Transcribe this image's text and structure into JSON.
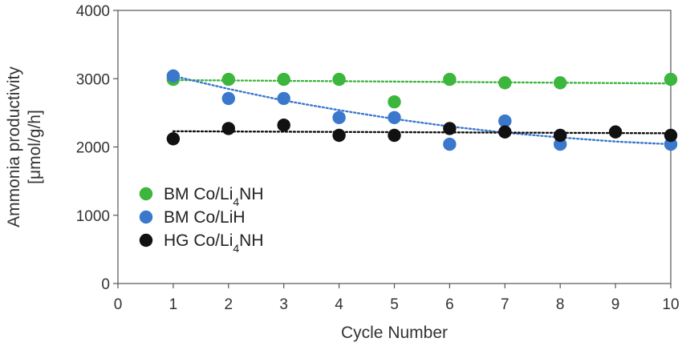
{
  "chart_data": {
    "type": "scatter",
    "title": "",
    "xlabel": "Cycle Number",
    "ylabel_line1": "Ammonia productivity",
    "ylabel_line2": "[μmol/g/h]",
    "xlim": [
      0,
      10
    ],
    "ylim": [
      0,
      4000
    ],
    "xticks": [
      0,
      1,
      2,
      3,
      4,
      5,
      6,
      7,
      8,
      9,
      10
    ],
    "yticks": [
      0,
      1000,
      2000,
      3000,
      4000
    ],
    "grid": false,
    "legend_position": "left",
    "series": [
      {
        "name_main": "BM Co/Li",
        "name_sub": "4",
        "name_tail": "NH",
        "color": "#3CB63C",
        "x": [
          1,
          2,
          3,
          4,
          5,
          6,
          7,
          8,
          10
        ],
        "y": [
          2990,
          2990,
          2990,
          2990,
          2660,
          2990,
          2940,
          2940,
          2990
        ],
        "trend": {
          "kind": "linear",
          "x": [
            1,
            10
          ],
          "y": [
            2980,
            2930
          ]
        }
      },
      {
        "name_main": "BM Co/LiH",
        "name_sub": "",
        "name_tail": "",
        "color": "#3B78CC",
        "x": [
          1,
          2,
          3,
          4,
          5,
          6,
          7,
          8,
          10
        ],
        "y": [
          3040,
          2710,
          2710,
          2430,
          2430,
          2040,
          2380,
          2040,
          2040
        ],
        "trend": {
          "kind": "curve",
          "x": [
            1,
            2,
            3,
            4,
            5,
            6,
            7,
            8,
            9,
            10
          ],
          "y": [
            3040,
            2850,
            2680,
            2540,
            2410,
            2300,
            2210,
            2140,
            2080,
            2040
          ]
        }
      },
      {
        "name_main": "HG Co/Li",
        "name_sub": "4",
        "name_tail": "NH",
        "color": "#111111",
        "x": [
          1,
          2,
          3,
          4,
          5,
          6,
          7,
          8,
          9,
          10
        ],
        "y": [
          2120,
          2270,
          2320,
          2170,
          2170,
          2270,
          2220,
          2170,
          2220,
          2170
        ],
        "trend": {
          "kind": "linear",
          "x": [
            1,
            10
          ],
          "y": [
            2230,
            2200
          ]
        }
      }
    ]
  }
}
